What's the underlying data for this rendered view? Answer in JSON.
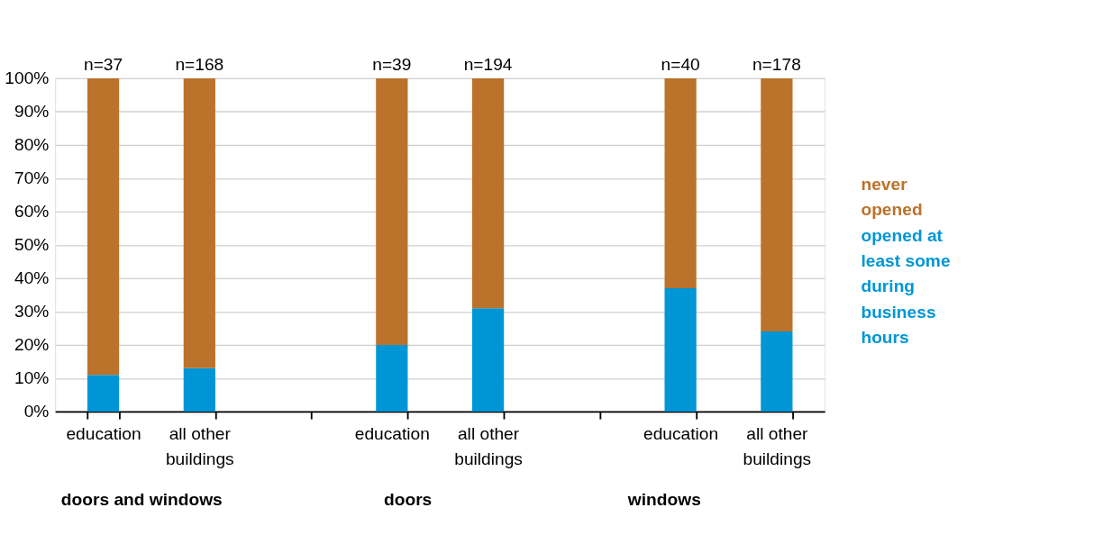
{
  "chart_data": {
    "type": "bar",
    "stacked": true,
    "categories": [
      "education",
      "all other buildings",
      null,
      "education",
      "all other buildings",
      null,
      "education",
      "all other buildings"
    ],
    "series": [
      {
        "name": "opened at least some during business hours",
        "color": "#0096d6",
        "values": [
          11,
          13,
          null,
          20,
          31,
          null,
          37,
          24
        ]
      },
      {
        "name": "never opened",
        "color": "#bb722a",
        "values": [
          89,
          87,
          null,
          80,
          69,
          null,
          63,
          76
        ]
      }
    ],
    "annotations": [
      "doors and windows",
      "doors",
      "windows",
      "n=37",
      "n=168",
      "n=39",
      "n=194",
      "n=40",
      "n=178"
    ],
    "ylim": [
      0,
      100
    ],
    "yticks": [
      {
        "value": 0,
        "label": "0%"
      },
      {
        "value": 10,
        "label": "10%"
      },
      {
        "value": 20,
        "label": "20%"
      },
      {
        "value": 30,
        "label": "30%"
      },
      {
        "value": 40,
        "label": "40%"
      },
      {
        "value": 50,
        "label": "50%"
      },
      {
        "value": 60,
        "label": "60%"
      },
      {
        "value": 70,
        "label": "70%"
      },
      {
        "value": 80,
        "label": "80%"
      },
      {
        "value": 90,
        "label": "90%"
      },
      {
        "value": 100,
        "label": "100%"
      }
    ],
    "grid": "y",
    "legend": "right"
  }
}
